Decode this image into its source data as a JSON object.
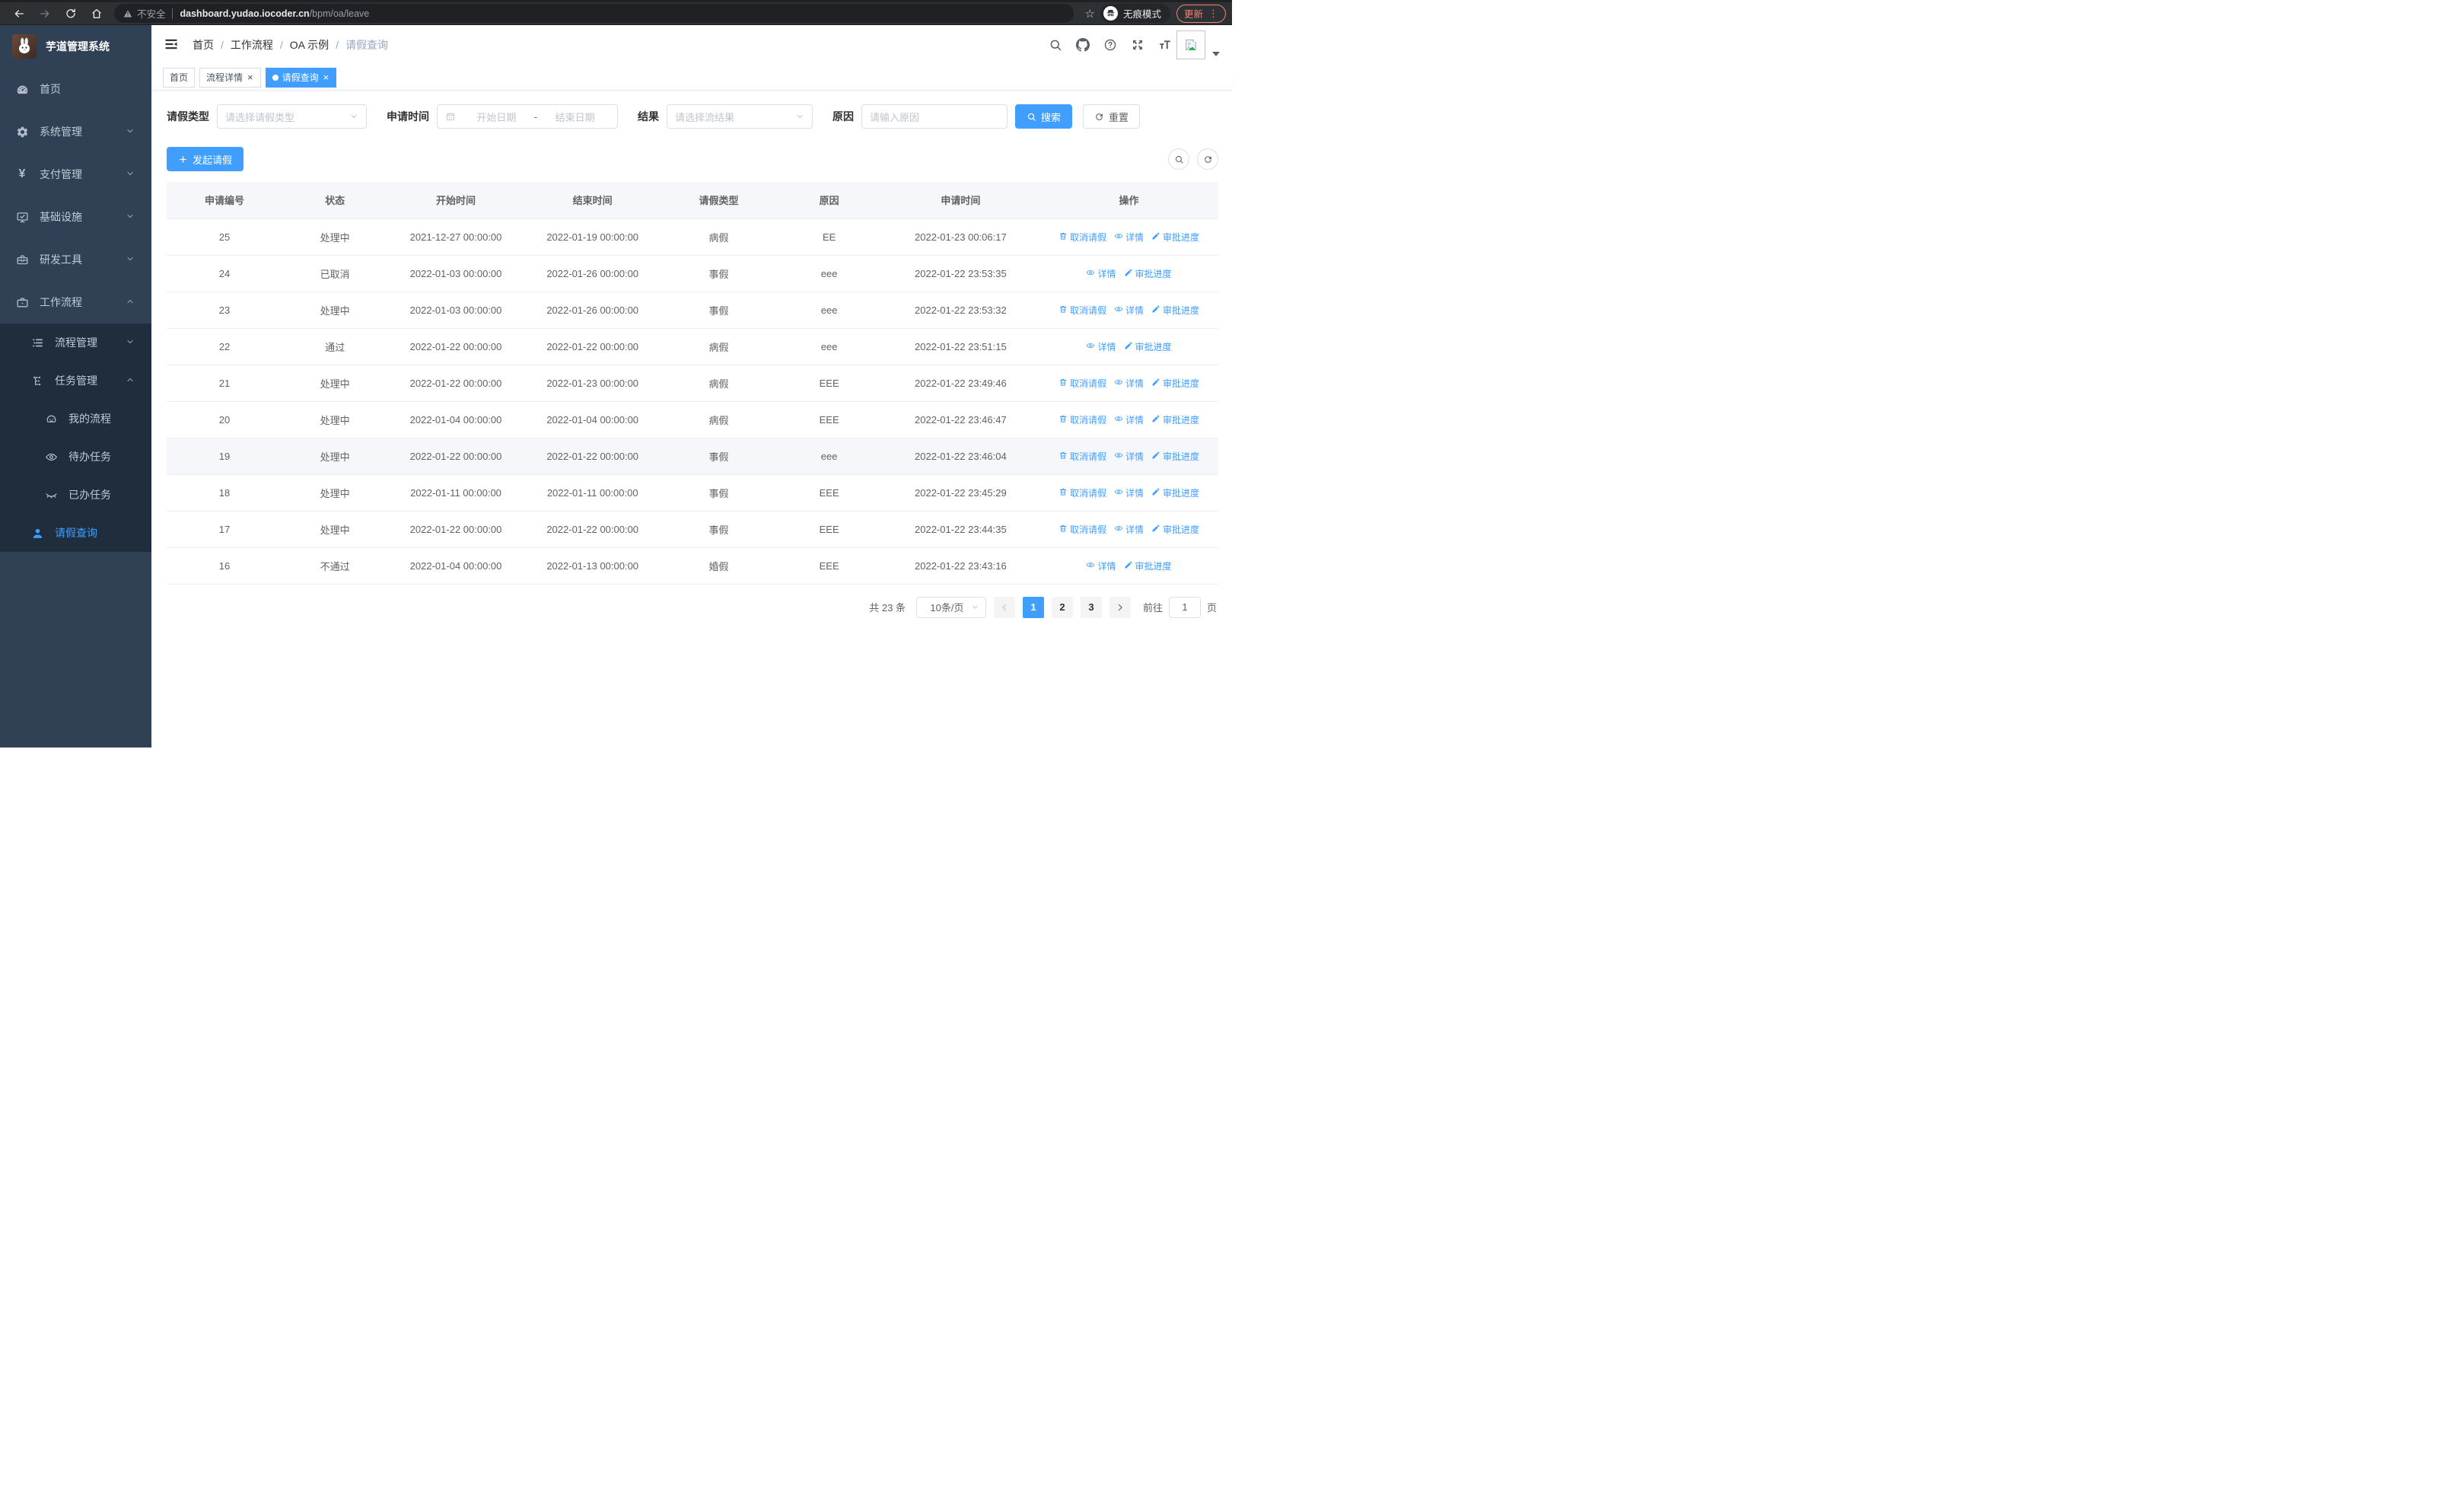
{
  "browser": {
    "security_label": "不安全",
    "url_host": "dashboard.yudao.iocoder.cn",
    "url_path": "/bpm/oa/leave",
    "incognito_label": "无痕模式",
    "update_label": "更新",
    "kebab": "⋮",
    "star": "☆"
  },
  "sidebar": {
    "title": "芋道管理系统",
    "items": [
      {
        "label": "首页",
        "icon": "dashboard-icon",
        "level": 1,
        "arrow": null,
        "dark": false,
        "active": false
      },
      {
        "label": "系统管理",
        "icon": "gear-icon",
        "level": 1,
        "arrow": "down",
        "dark": false,
        "active": false
      },
      {
        "label": "支付管理",
        "icon": "yen-icon",
        "level": 1,
        "arrow": "down",
        "dark": false,
        "active": false
      },
      {
        "label": "基础设施",
        "icon": "monitor-icon",
        "level": 1,
        "arrow": "down",
        "dark": false,
        "active": false
      },
      {
        "label": "研发工具",
        "icon": "toolbox-icon",
        "level": 1,
        "arrow": "down",
        "dark": false,
        "active": false
      },
      {
        "label": "工作流程",
        "icon": "briefcase-icon",
        "level": 1,
        "arrow": "up",
        "dark": false,
        "active": false
      },
      {
        "label": "流程管理",
        "icon": "list-icon",
        "level": 2,
        "arrow": "down",
        "dark": true,
        "active": false
      },
      {
        "label": "任务管理",
        "icon": "flow-icon",
        "level": 2,
        "arrow": "up",
        "dark": true,
        "active": false
      },
      {
        "label": "我的流程",
        "icon": "face-icon",
        "level": 3,
        "arrow": null,
        "dark": true,
        "active": false
      },
      {
        "label": "待办任务",
        "icon": "eye-icon",
        "level": 3,
        "arrow": null,
        "dark": true,
        "active": false
      },
      {
        "label": "已办任务",
        "icon": "eye-closed-icon",
        "level": 3,
        "arrow": null,
        "dark": true,
        "active": false
      },
      {
        "label": "请假查询",
        "icon": "user-icon",
        "level": 2,
        "arrow": null,
        "dark": true,
        "active": true
      }
    ]
  },
  "header": {
    "breadcrumb": [
      "首页",
      "工作流程",
      "OA 示例",
      "请假查询"
    ],
    "icons": [
      "search-icon",
      "github-icon",
      "question-icon",
      "fullscreen-icon",
      "fontsize-icon"
    ]
  },
  "tabs": [
    {
      "label": "首页",
      "active": false,
      "closable": false
    },
    {
      "label": "流程详情",
      "active": false,
      "closable": true
    },
    {
      "label": "请假查询",
      "active": true,
      "closable": true
    }
  ],
  "filters": {
    "type_label": "请假类型",
    "type_placeholder": "请选择请假类型",
    "time_label": "申请时间",
    "start_placeholder": "开始日期",
    "dash": "-",
    "end_placeholder": "结束日期",
    "result_label": "结果",
    "result_placeholder": "请选择流结果",
    "reason_label": "原因",
    "reason_placeholder": "请输入原因",
    "search_label": "搜索",
    "reset_label": "重置"
  },
  "toolbar": {
    "create_label": "发起请假"
  },
  "table": {
    "columns": [
      "申请编号",
      "状态",
      "开始时间",
      "结束时间",
      "请假类型",
      "原因",
      "申请时间",
      "操作"
    ],
    "action_labels": {
      "cancel": "取消请假",
      "detail": "详情",
      "progress": "审批进度"
    },
    "rows": [
      {
        "id": "25",
        "status": "处理中",
        "start": "2021-12-27 00:00:00",
        "end": "2022-01-19 00:00:00",
        "type": "病假",
        "reason": "EE",
        "apply_time": "2022-01-23 00:06:17",
        "actions": [
          "cancel",
          "detail",
          "progress"
        ],
        "highlight": false
      },
      {
        "id": "24",
        "status": "已取消",
        "start": "2022-01-03 00:00:00",
        "end": "2022-01-26 00:00:00",
        "type": "事假",
        "reason": "eee",
        "apply_time": "2022-01-22 23:53:35",
        "actions": [
          "detail",
          "progress"
        ],
        "highlight": false
      },
      {
        "id": "23",
        "status": "处理中",
        "start": "2022-01-03 00:00:00",
        "end": "2022-01-26 00:00:00",
        "type": "事假",
        "reason": "eee",
        "apply_time": "2022-01-22 23:53:32",
        "actions": [
          "cancel",
          "detail",
          "progress"
        ],
        "highlight": false
      },
      {
        "id": "22",
        "status": "通过",
        "start": "2022-01-22 00:00:00",
        "end": "2022-01-22 00:00:00",
        "type": "病假",
        "reason": "eee",
        "apply_time": "2022-01-22 23:51:15",
        "actions": [
          "detail",
          "progress"
        ],
        "highlight": false
      },
      {
        "id": "21",
        "status": "处理中",
        "start": "2022-01-22 00:00:00",
        "end": "2022-01-23 00:00:00",
        "type": "病假",
        "reason": "EEE",
        "apply_time": "2022-01-22 23:49:46",
        "actions": [
          "cancel",
          "detail",
          "progress"
        ],
        "highlight": false
      },
      {
        "id": "20",
        "status": "处理中",
        "start": "2022-01-04 00:00:00",
        "end": "2022-01-04 00:00:00",
        "type": "病假",
        "reason": "EEE",
        "apply_time": "2022-01-22 23:46:47",
        "actions": [
          "cancel",
          "detail",
          "progress"
        ],
        "highlight": false
      },
      {
        "id": "19",
        "status": "处理中",
        "start": "2022-01-22 00:00:00",
        "end": "2022-01-22 00:00:00",
        "type": "事假",
        "reason": "eee",
        "apply_time": "2022-01-22 23:46:04",
        "actions": [
          "cancel",
          "detail",
          "progress"
        ],
        "highlight": true
      },
      {
        "id": "18",
        "status": "处理中",
        "start": "2022-01-11 00:00:00",
        "end": "2022-01-11 00:00:00",
        "type": "事假",
        "reason": "EEE",
        "apply_time": "2022-01-22 23:45:29",
        "actions": [
          "cancel",
          "detail",
          "progress"
        ],
        "highlight": false
      },
      {
        "id": "17",
        "status": "处理中",
        "start": "2022-01-22 00:00:00",
        "end": "2022-01-22 00:00:00",
        "type": "事假",
        "reason": "EEE",
        "apply_time": "2022-01-22 23:44:35",
        "actions": [
          "cancel",
          "detail",
          "progress"
        ],
        "highlight": false
      },
      {
        "id": "16",
        "status": "不通过",
        "start": "2022-01-04 00:00:00",
        "end": "2022-01-13 00:00:00",
        "type": "婚假",
        "reason": "EEE",
        "apply_time": "2022-01-22 23:43:16",
        "actions": [
          "detail",
          "progress"
        ],
        "highlight": false
      }
    ]
  },
  "pagination": {
    "total_label": "共 23 条",
    "page_size_label": "10条/页",
    "pages": [
      "1",
      "2",
      "3"
    ],
    "current_page": "1",
    "goto_label": "前往",
    "goto_value": "1",
    "goto_unit": "页"
  },
  "colors": {
    "accent": "#409eff",
    "sidebar_bg": "#304156",
    "submenu_bg": "#1f2d3d",
    "update_chip": "#ee8277"
  }
}
